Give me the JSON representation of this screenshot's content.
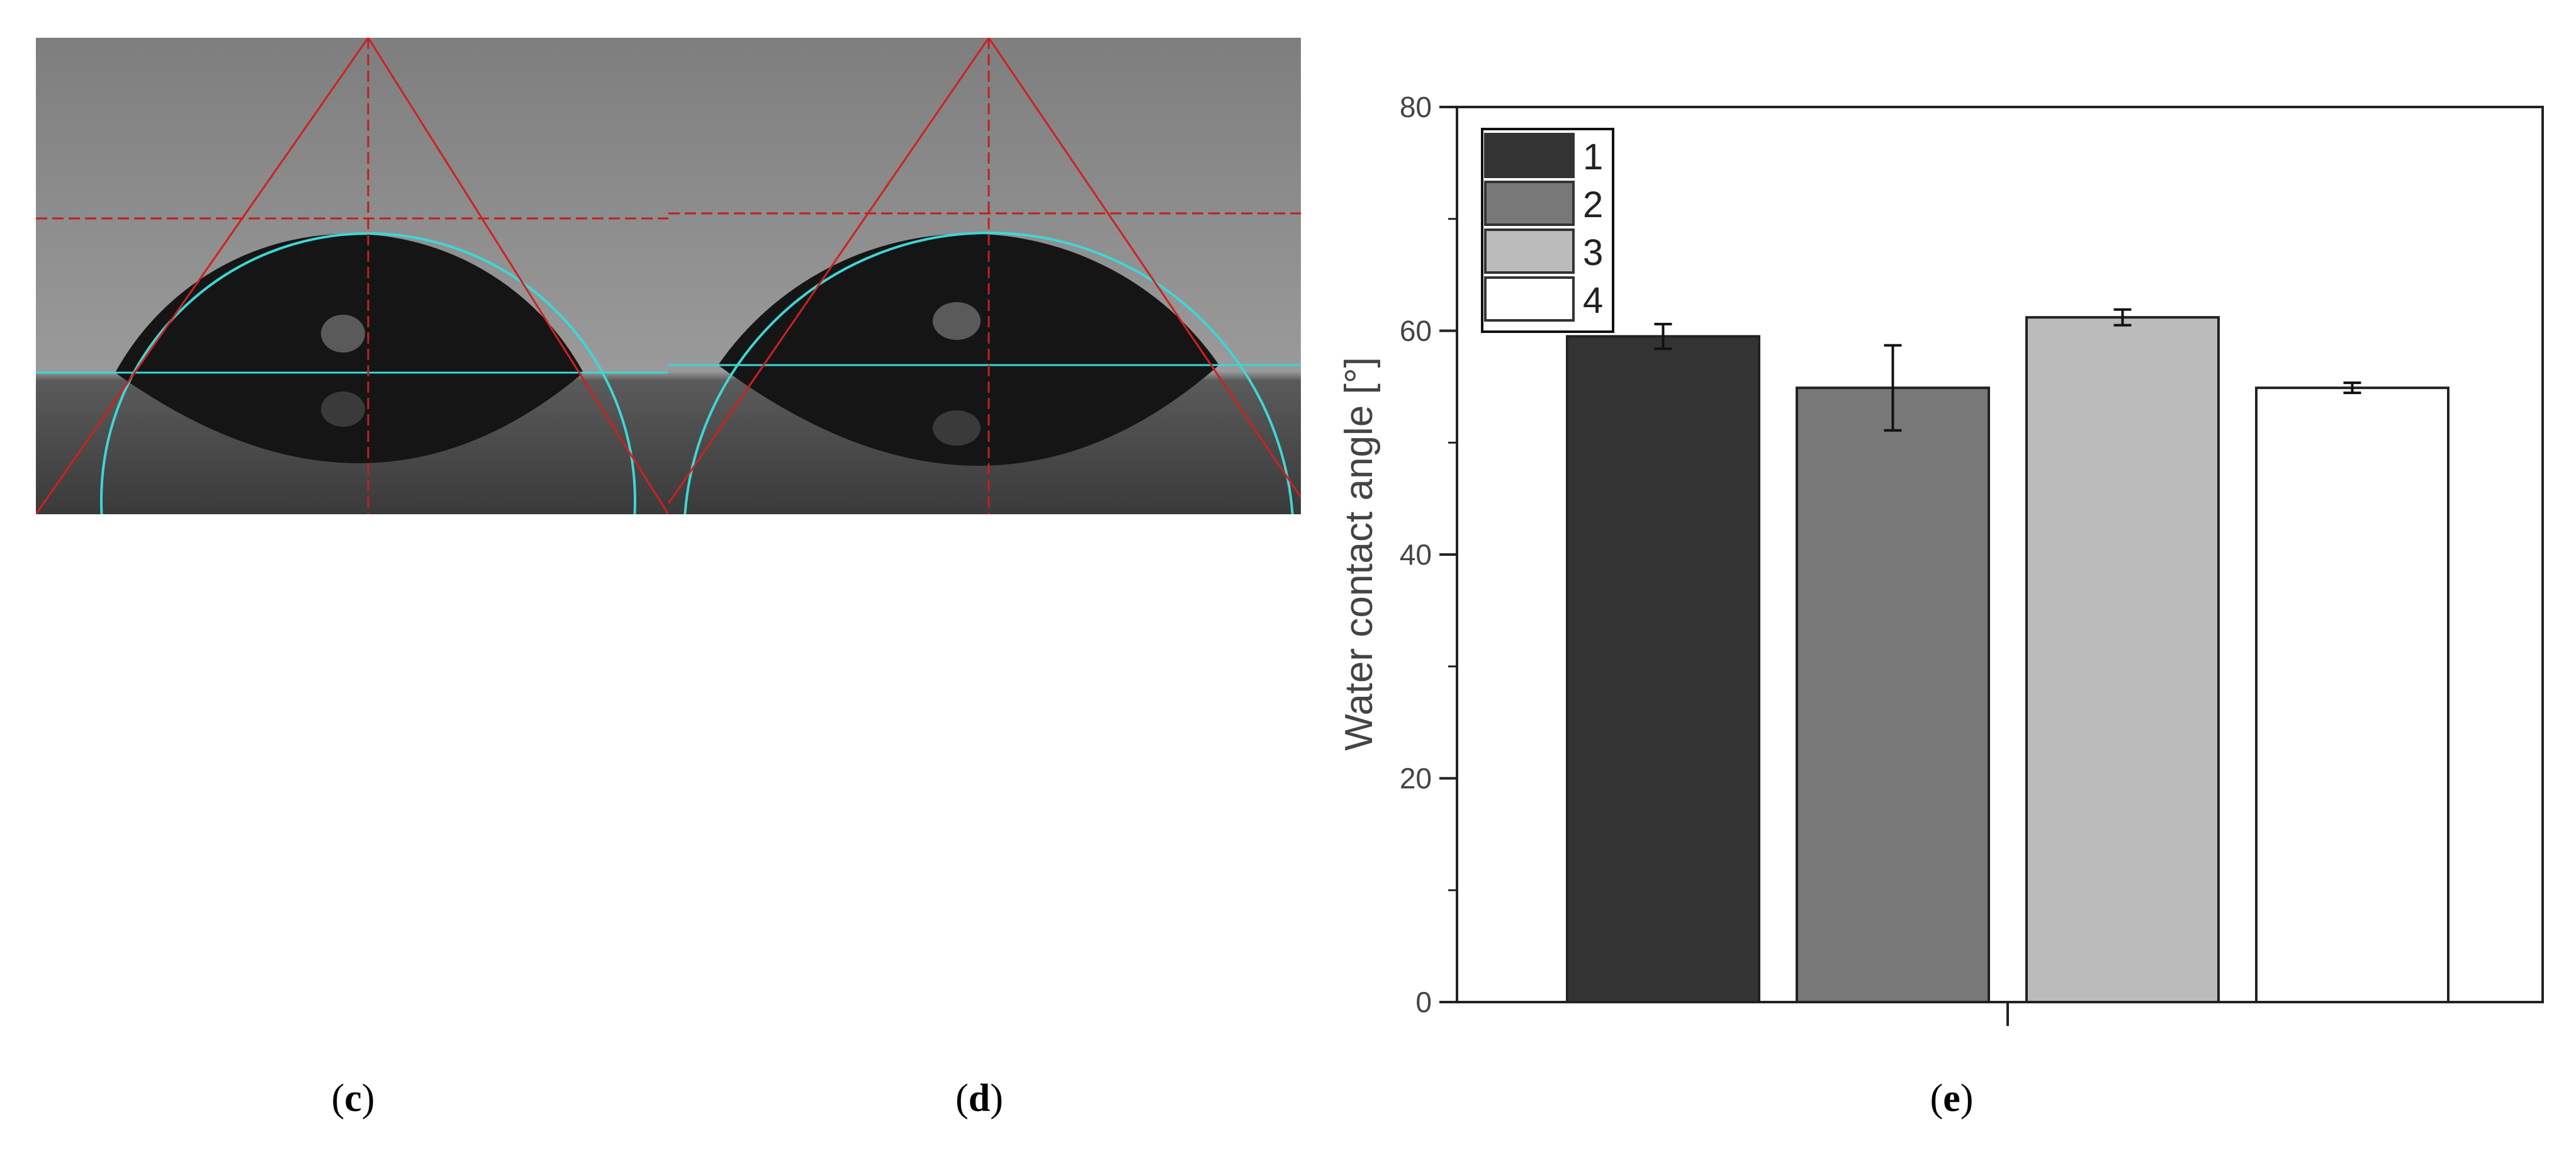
{
  "panels": {
    "c": "c",
    "d": "d",
    "e": "e"
  },
  "chart_data": {
    "type": "bar",
    "categories": [
      "1",
      "2",
      "3",
      "4"
    ],
    "values": [
      59.5,
      54.9,
      61.2,
      54.9
    ],
    "errors": [
      1.1,
      3.8,
      0.7,
      0.45
    ],
    "colors": [
      "#333333",
      "#787878",
      "#bbbbbb",
      "#ffffff"
    ],
    "legend": [
      "1",
      "2",
      "3",
      "4"
    ],
    "legend_placement": "top-left",
    "title": "",
    "xlabel": "",
    "ylabel": "Water contact angle  [°]",
    "ylim": [
      0,
      80
    ],
    "yticks": [
      "0",
      "20",
      "40",
      "60",
      "80"
    ],
    "grid": false
  }
}
